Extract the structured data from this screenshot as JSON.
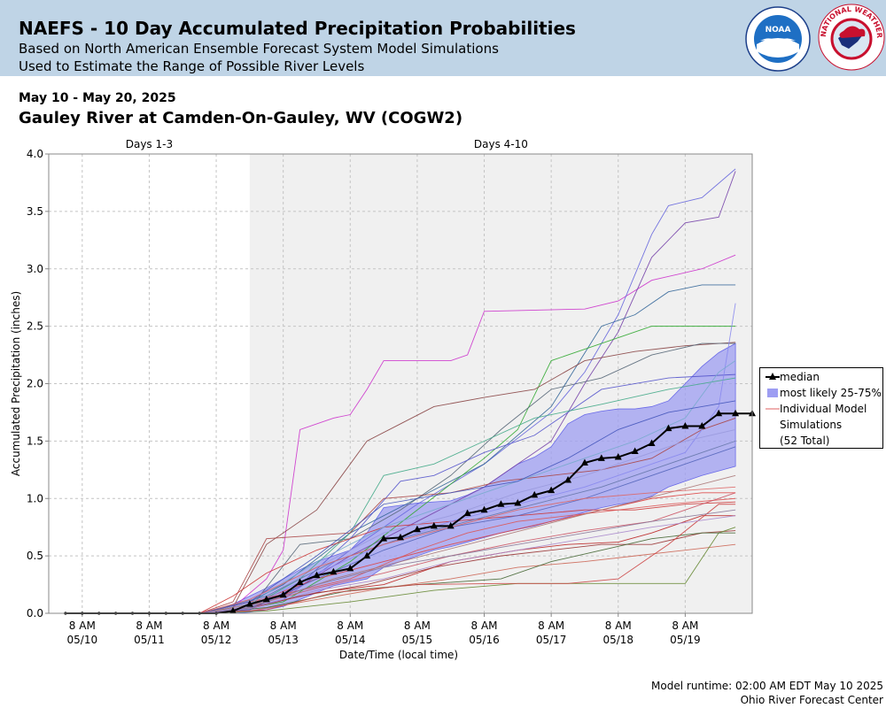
{
  "header": {
    "title": "NAEFS - 10 Day Accumulated Precipitation Probabilities",
    "subtitle1": "Based on North American Ensemble Forecast System Model Simulations",
    "subtitle2": "Used to Estimate the Range of Possible River Levels",
    "noaa_logo_text": "NOAA",
    "nws_logo_text": "NATIONAL WEATHER SERVICE"
  },
  "date_range": "May 10 - May 20, 2025",
  "station": "Gauley River at Camden-On-Gauley, WV (COGW2)",
  "footer": {
    "runtime": "Model runtime: 02:00 AM EDT May 10 2025",
    "center": "Ohio River Forecast Center"
  },
  "legend": {
    "median": "median",
    "band": "most likely 25-75%",
    "individual_line1": "Individual Model",
    "individual_line2": "Simulations",
    "total": "(52 Total)"
  },
  "colors": {
    "header_bg": "#bfd4e6",
    "band_fill": "#9d9df2",
    "band_edge": "#6a6ae8",
    "median": "#000000",
    "shaded_region": "#f0f0f0"
  },
  "chart_data": {
    "type": "line",
    "xlabel": "Date/Time (local time)",
    "ylabel": "Accumulated Precipitation (inches)",
    "ylim": [
      0,
      4.0
    ],
    "yticks": [
      "0.0",
      "0.5",
      "1.0",
      "1.5",
      "2.0",
      "2.5",
      "3.0",
      "3.5",
      "4.0"
    ],
    "x_ticks": [
      {
        "time": "8 AM",
        "date": "05/10"
      },
      {
        "time": "8 AM",
        "date": "05/11"
      },
      {
        "time": "8 AM",
        "date": "05/12"
      },
      {
        "time": "8 AM",
        "date": "05/13"
      },
      {
        "time": "8 AM",
        "date": "05/14"
      },
      {
        "time": "8 AM",
        "date": "05/15"
      },
      {
        "time": "8 AM",
        "date": "05/16"
      },
      {
        "time": "8 AM",
        "date": "05/17"
      },
      {
        "time": "8 AM",
        "date": "05/18"
      },
      {
        "time": "8 AM",
        "date": "05/19"
      }
    ],
    "x_range_hours": [
      -12,
      240
    ],
    "periods": [
      {
        "label": "Days 1-3",
        "start_hour": -12,
        "end_hour": 60,
        "shaded": false
      },
      {
        "label": "Days 4-10",
        "start_hour": 60,
        "end_hour": 240,
        "shaded": true
      }
    ],
    "time_note": "x values are hours after 8 AM 05/10 (6-hour steps)",
    "median": {
      "x": [
        -6,
        0,
        6,
        12,
        18,
        24,
        30,
        36,
        42,
        48,
        54,
        60,
        66,
        72,
        78,
        84,
        90,
        96,
        102,
        108,
        114,
        120,
        126,
        132,
        138,
        144,
        150,
        156,
        162,
        168,
        174,
        180,
        186,
        192,
        198,
        204,
        210,
        216,
        222,
        228,
        234,
        240
      ],
      "y": [
        0,
        0,
        0,
        0,
        0,
        0,
        0,
        0,
        0,
        0,
        0.02,
        0.08,
        0.12,
        0.16,
        0.27,
        0.33,
        0.36,
        0.39,
        0.5,
        0.65,
        0.66,
        0.73,
        0.76,
        0.76,
        0.87,
        0.9,
        0.95,
        0.96,
        1.03,
        1.07,
        1.16,
        1.31,
        1.35,
        1.36,
        1.41,
        1.48,
        1.61,
        1.63,
        1.63,
        1.74,
        1.74,
        1.74
      ]
    },
    "band": {
      "x": [
        42,
        48,
        54,
        60,
        66,
        72,
        78,
        84,
        90,
        96,
        102,
        108,
        114,
        120,
        126,
        132,
        138,
        144,
        150,
        156,
        162,
        168,
        174,
        180,
        186,
        192,
        198,
        204,
        210,
        216,
        222,
        228,
        234
      ],
      "p25": [
        0,
        0,
        0,
        0.01,
        0.03,
        0.06,
        0.12,
        0.18,
        0.24,
        0.27,
        0.3,
        0.4,
        0.45,
        0.5,
        0.55,
        0.58,
        0.62,
        0.66,
        0.7,
        0.73,
        0.76,
        0.8,
        0.84,
        0.88,
        0.92,
        0.95,
        0.97,
        1.02,
        1.1,
        1.15,
        1.2,
        1.24,
        1.28
      ],
      "p75": [
        0,
        0.02,
        0.08,
        0.15,
        0.22,
        0.3,
        0.38,
        0.45,
        0.5,
        0.55,
        0.7,
        0.92,
        0.94,
        0.96,
        0.97,
        0.98,
        1.03,
        1.1,
        1.2,
        1.3,
        1.36,
        1.45,
        1.65,
        1.73,
        1.76,
        1.78,
        1.78,
        1.8,
        1.85,
        2.0,
        2.15,
        2.27,
        2.35
      ]
    },
    "median_marker": "triangle",
    "series": [
      {
        "color": "#cc33cc",
        "x": [
          42,
          54,
          66,
          72,
          78,
          90,
          96,
          102,
          108,
          132,
          138,
          144,
          180,
          192,
          204,
          222,
          234
        ],
        "y": [
          0,
          0.05,
          0.3,
          0.55,
          1.6,
          1.7,
          1.73,
          1.95,
          2.2,
          2.2,
          2.25,
          2.63,
          2.65,
          2.72,
          2.9,
          3.0,
          3.12
        ]
      },
      {
        "color": "#6666dd",
        "x": [
          42,
          60,
          72,
          96,
          120,
          144,
          168,
          180,
          192,
          204,
          210,
          222,
          234
        ],
        "y": [
          0,
          0.05,
          0.12,
          0.55,
          0.95,
          1.3,
          1.75,
          2.1,
          2.6,
          3.3,
          3.55,
          3.62,
          3.87
        ]
      },
      {
        "color": "#7744aa",
        "x": [
          42,
          60,
          72,
          96,
          120,
          144,
          168,
          180,
          192,
          204,
          216,
          228,
          234
        ],
        "y": [
          0,
          0.08,
          0.15,
          0.5,
          0.8,
          1.1,
          1.5,
          2.0,
          2.45,
          3.1,
          3.4,
          3.45,
          3.85
        ]
      },
      {
        "color": "#336699",
        "x": [
          42,
          60,
          72,
          96,
          120,
          144,
          168,
          186,
          198,
          210,
          222,
          234
        ],
        "y": [
          0,
          0.1,
          0.25,
          0.7,
          1.0,
          1.3,
          1.8,
          2.5,
          2.6,
          2.8,
          2.86,
          2.86
        ]
      },
      {
        "color": "#33aa33",
        "x": [
          42,
          60,
          72,
          96,
          120,
          144,
          156,
          168,
          180,
          192,
          204,
          222,
          234
        ],
        "y": [
          0,
          0.05,
          0.1,
          0.45,
          0.9,
          1.35,
          1.6,
          2.2,
          2.3,
          2.4,
          2.5,
          2.5,
          2.5
        ]
      },
      {
        "color": "#884444",
        "x": [
          42,
          54,
          66,
          84,
          102,
          114,
          126,
          144,
          162,
          180,
          198,
          216,
          234
        ],
        "y": [
          0,
          0.05,
          0.6,
          0.9,
          1.5,
          1.65,
          1.8,
          1.88,
          1.95,
          2.2,
          2.28,
          2.33,
          2.36
        ]
      },
      {
        "color": "#556677",
        "x": [
          42,
          60,
          78,
          96,
          114,
          132,
          150,
          168,
          186,
          204,
          222,
          234
        ],
        "y": [
          0,
          0.04,
          0.6,
          0.65,
          0.9,
          1.2,
          1.6,
          1.95,
          2.05,
          2.25,
          2.35,
          2.35
        ]
      },
      {
        "color": "#5555cc",
        "x": [
          42,
          60,
          78,
          96,
          114,
          126,
          144,
          162,
          186,
          210,
          234
        ],
        "y": [
          0,
          0.03,
          0.25,
          0.65,
          1.15,
          1.2,
          1.4,
          1.55,
          1.95,
          2.05,
          2.08
        ]
      },
      {
        "color": "#44aa88",
        "x": [
          42,
          60,
          78,
          96,
          108,
          126,
          144,
          162,
          186,
          210,
          234
        ],
        "y": [
          0,
          0.05,
          0.3,
          0.7,
          1.2,
          1.3,
          1.5,
          1.7,
          1.82,
          1.95,
          2.05
        ]
      },
      {
        "color": "#aa4444",
        "x": [
          42,
          54,
          66,
          84,
          96,
          108,
          132,
          150,
          168,
          186,
          204,
          222,
          234
        ],
        "y": [
          0,
          0.1,
          0.65,
          0.68,
          0.7,
          1.0,
          1.05,
          1.15,
          1.2,
          1.25,
          1.35,
          1.6,
          1.7
        ]
      },
      {
        "color": "#cc3333",
        "x": [
          42,
          54,
          66,
          84,
          108,
          132,
          156,
          180,
          198,
          216,
          234
        ],
        "y": [
          0,
          0.15,
          0.35,
          0.55,
          0.75,
          0.8,
          0.85,
          0.9,
          0.9,
          0.95,
          0.97
        ]
      },
      {
        "color": "#dd5555",
        "x": [
          42,
          60,
          78,
          96,
          120,
          138,
          156,
          174,
          192,
          210,
          234
        ],
        "y": [
          0,
          0.1,
          0.2,
          0.3,
          0.55,
          0.7,
          0.8,
          0.85,
          0.9,
          0.95,
          1.0
        ]
      },
      {
        "color": "#bb2222",
        "x": [
          42,
          60,
          84,
          108,
          132,
          156,
          174,
          192,
          204,
          222,
          234
        ],
        "y": [
          0,
          0.05,
          0.18,
          0.25,
          0.45,
          0.55,
          0.6,
          0.62,
          0.7,
          0.85,
          0.85
        ]
      },
      {
        "color": "#993333",
        "x": [
          42,
          60,
          78,
          102,
          126,
          150,
          168,
          186,
          204,
          222,
          234
        ],
        "y": [
          0,
          0.04,
          0.15,
          0.25,
          0.4,
          0.5,
          0.55,
          0.6,
          0.6,
          0.7,
          0.72
        ]
      },
      {
        "color": "#cc6655",
        "x": [
          42,
          60,
          84,
          108,
          132,
          156,
          180,
          198,
          216,
          234
        ],
        "y": [
          0,
          0.02,
          0.12,
          0.22,
          0.3,
          0.4,
          0.45,
          0.5,
          0.55,
          0.6
        ]
      },
      {
        "color": "#668833",
        "x": [
          42,
          66,
          96,
          126,
          156,
          186,
          204,
          216,
          228,
          234
        ],
        "y": [
          0,
          0.02,
          0.1,
          0.2,
          0.26,
          0.26,
          0.26,
          0.26,
          0.7,
          0.75
        ]
      },
      {
        "color": "#446633",
        "x": [
          42,
          66,
          96,
          120,
          150,
          168,
          186,
          204,
          222,
          234
        ],
        "y": [
          0,
          0.05,
          0.2,
          0.25,
          0.3,
          0.45,
          0.55,
          0.65,
          0.7,
          0.7
        ]
      },
      {
        "color": "#cc4444",
        "x": [
          42,
          66,
          90,
          120,
          150,
          174,
          192,
          210,
          228,
          234
        ],
        "y": [
          0,
          0.03,
          0.18,
          0.25,
          0.26,
          0.26,
          0.3,
          0.6,
          0.95,
          0.95
        ]
      },
      {
        "color": "#cc5566",
        "x": [
          42,
          60,
          84,
          108,
          132,
          156,
          180,
          204,
          222,
          234
        ],
        "y": [
          0,
          0.06,
          0.22,
          0.35,
          0.5,
          0.62,
          0.72,
          0.8,
          0.95,
          1.05
        ]
      },
      {
        "color": "#dd4444",
        "x": [
          42,
          60,
          84,
          108,
          132,
          150,
          168,
          186,
          204,
          222,
          234
        ],
        "y": [
          0,
          0.08,
          0.3,
          0.45,
          0.6,
          0.7,
          0.8,
          0.9,
          1.0,
          1.05,
          1.05
        ]
      },
      {
        "color": "#8888ee",
        "x": [
          42,
          60,
          84,
          108,
          132,
          156,
          180,
          198,
          216,
          228,
          234
        ],
        "y": [
          0,
          0.05,
          0.35,
          0.6,
          0.8,
          0.95,
          1.1,
          1.25,
          1.4,
          1.8,
          2.7
        ]
      },
      {
        "color": "#9999dd",
        "x": [
          42,
          60,
          84,
          108,
          132,
          156,
          180,
          198,
          216,
          234
        ],
        "y": [
          0,
          0.06,
          0.4,
          0.7,
          0.85,
          1.05,
          1.2,
          1.35,
          1.5,
          1.6
        ]
      },
      {
        "color": "#77aacc",
        "x": [
          42,
          60,
          84,
          108,
          132,
          156,
          180,
          198,
          216,
          228,
          234
        ],
        "y": [
          0,
          0.08,
          0.45,
          0.75,
          0.95,
          1.15,
          1.35,
          1.5,
          1.7,
          2.1,
          2.2
        ]
      },
      {
        "color": "#5566bb",
        "x": [
          42,
          60,
          84,
          108,
          132,
          156,
          180,
          198,
          216,
          234
        ],
        "y": [
          0,
          0.04,
          0.3,
          0.55,
          0.75,
          0.85,
          1.0,
          1.15,
          1.3,
          1.45
        ]
      },
      {
        "color": "#aa7777",
        "x": [
          42,
          66,
          90,
          114,
          138,
          162,
          186,
          210,
          234
        ],
        "y": [
          0,
          0.1,
          0.3,
          0.45,
          0.6,
          0.75,
          0.9,
          1.05,
          1.2
        ]
      },
      {
        "color": "#887799",
        "x": [
          42,
          60,
          84,
          108,
          132,
          156,
          180,
          204,
          234
        ],
        "y": [
          0,
          0.05,
          0.25,
          0.4,
          0.5,
          0.6,
          0.7,
          0.8,
          0.9
        ]
      },
      {
        "color": "#6677aa",
        "x": [
          42,
          66,
          90,
          114,
          138,
          162,
          186,
          210,
          234
        ],
        "y": [
          0,
          0.15,
          0.45,
          0.65,
          0.8,
          0.95,
          1.1,
          1.3,
          1.5
        ]
      },
      {
        "color": "#4455bb",
        "x": [
          42,
          60,
          84,
          108,
          132,
          156,
          174,
          192,
          210,
          234
        ],
        "y": [
          0,
          0.1,
          0.5,
          0.95,
          1.05,
          1.15,
          1.35,
          1.6,
          1.75,
          1.85
        ]
      },
      {
        "color": "#aa88cc",
        "x": [
          42,
          60,
          84,
          108,
          132,
          156,
          180,
          204,
          234
        ],
        "y": [
          0,
          0.04,
          0.2,
          0.3,
          0.45,
          0.55,
          0.65,
          0.75,
          0.85
        ]
      },
      {
        "color": "#dd6666",
        "x": [
          42,
          60,
          84,
          108,
          132,
          156,
          180,
          204,
          234
        ],
        "y": [
          0,
          0.12,
          0.4,
          0.6,
          0.75,
          0.9,
          1.0,
          1.05,
          1.1
        ]
      }
    ]
  }
}
